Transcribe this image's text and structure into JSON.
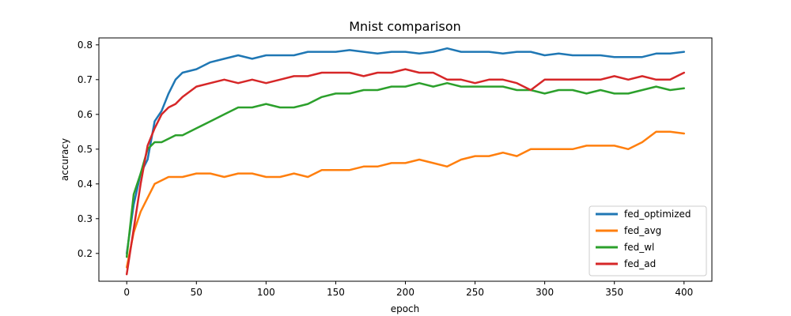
{
  "chart_data": {
    "type": "line",
    "title": "Mnist comparison",
    "xlabel": "epoch",
    "ylabel": "accuracy",
    "xlim": [
      -20,
      420
    ],
    "ylim": [
      0.12,
      0.82
    ],
    "xticks": [
      0,
      50,
      100,
      150,
      200,
      250,
      300,
      350,
      400
    ],
    "yticks": [
      0.2,
      0.3,
      0.4,
      0.5,
      0.6,
      0.7,
      0.8
    ],
    "grid": false,
    "legend_position": "lower-right",
    "series": [
      {
        "name": "fed_optimized",
        "color": "#1f77b4",
        "x": [
          0,
          5,
          10,
          15,
          20,
          25,
          30,
          35,
          40,
          50,
          60,
          70,
          80,
          90,
          100,
          110,
          120,
          130,
          140,
          150,
          160,
          170,
          180,
          190,
          200,
          210,
          220,
          230,
          240,
          250,
          260,
          270,
          280,
          290,
          300,
          310,
          320,
          330,
          340,
          350,
          360,
          370,
          380,
          390,
          400
        ],
        "y": [
          0.2,
          0.34,
          0.43,
          0.47,
          0.58,
          0.61,
          0.66,
          0.7,
          0.72,
          0.73,
          0.75,
          0.76,
          0.77,
          0.76,
          0.77,
          0.77,
          0.77,
          0.78,
          0.78,
          0.78,
          0.785,
          0.78,
          0.775,
          0.78,
          0.78,
          0.775,
          0.78,
          0.79,
          0.78,
          0.78,
          0.78,
          0.775,
          0.78,
          0.78,
          0.77,
          0.775,
          0.77,
          0.77,
          0.77,
          0.765,
          0.765,
          0.765,
          0.775,
          0.775,
          0.78
        ]
      },
      {
        "name": "fed_avg",
        "color": "#ff7f0e",
        "x": [
          0,
          5,
          10,
          15,
          20,
          25,
          30,
          35,
          40,
          50,
          60,
          70,
          80,
          90,
          100,
          110,
          120,
          130,
          140,
          150,
          160,
          170,
          180,
          190,
          200,
          210,
          220,
          230,
          240,
          250,
          260,
          270,
          280,
          290,
          300,
          310,
          320,
          330,
          340,
          350,
          360,
          370,
          380,
          390,
          400
        ],
        "y": [
          0.16,
          0.26,
          0.32,
          0.36,
          0.4,
          0.41,
          0.42,
          0.42,
          0.42,
          0.43,
          0.43,
          0.42,
          0.43,
          0.43,
          0.42,
          0.42,
          0.43,
          0.42,
          0.44,
          0.44,
          0.44,
          0.45,
          0.45,
          0.46,
          0.46,
          0.47,
          0.46,
          0.45,
          0.47,
          0.48,
          0.48,
          0.49,
          0.48,
          0.5,
          0.5,
          0.5,
          0.5,
          0.51,
          0.51,
          0.51,
          0.5,
          0.52,
          0.55,
          0.55,
          0.545
        ]
      },
      {
        "name": "fed_wl",
        "color": "#2ca02c",
        "x": [
          0,
          5,
          10,
          15,
          20,
          25,
          30,
          35,
          40,
          50,
          60,
          70,
          80,
          90,
          100,
          110,
          120,
          130,
          140,
          150,
          160,
          170,
          180,
          190,
          200,
          210,
          220,
          230,
          240,
          250,
          260,
          270,
          280,
          290,
          300,
          310,
          320,
          330,
          340,
          350,
          360,
          370,
          380,
          390,
          400
        ],
        "y": [
          0.19,
          0.37,
          0.43,
          0.5,
          0.52,
          0.52,
          0.53,
          0.54,
          0.54,
          0.56,
          0.58,
          0.6,
          0.62,
          0.62,
          0.63,
          0.62,
          0.62,
          0.63,
          0.65,
          0.66,
          0.66,
          0.67,
          0.67,
          0.68,
          0.68,
          0.69,
          0.68,
          0.69,
          0.68,
          0.68,
          0.68,
          0.68,
          0.67,
          0.67,
          0.66,
          0.67,
          0.67,
          0.66,
          0.67,
          0.66,
          0.66,
          0.67,
          0.68,
          0.67,
          0.675
        ]
      },
      {
        "name": "fed_ad",
        "color": "#d62728",
        "x": [
          0,
          5,
          10,
          15,
          20,
          25,
          30,
          35,
          40,
          50,
          60,
          70,
          80,
          90,
          100,
          110,
          120,
          130,
          140,
          150,
          160,
          170,
          180,
          190,
          200,
          210,
          220,
          230,
          240,
          250,
          260,
          270,
          280,
          290,
          300,
          310,
          320,
          330,
          340,
          350,
          360,
          370,
          380,
          390,
          400
        ],
        "y": [
          0.14,
          0.27,
          0.4,
          0.51,
          0.56,
          0.6,
          0.62,
          0.63,
          0.65,
          0.68,
          0.69,
          0.7,
          0.69,
          0.7,
          0.69,
          0.7,
          0.71,
          0.71,
          0.72,
          0.72,
          0.72,
          0.71,
          0.72,
          0.72,
          0.73,
          0.72,
          0.72,
          0.7,
          0.7,
          0.69,
          0.7,
          0.7,
          0.69,
          0.67,
          0.7,
          0.7,
          0.7,
          0.7,
          0.7,
          0.71,
          0.7,
          0.71,
          0.7,
          0.7,
          0.72
        ]
      }
    ]
  }
}
